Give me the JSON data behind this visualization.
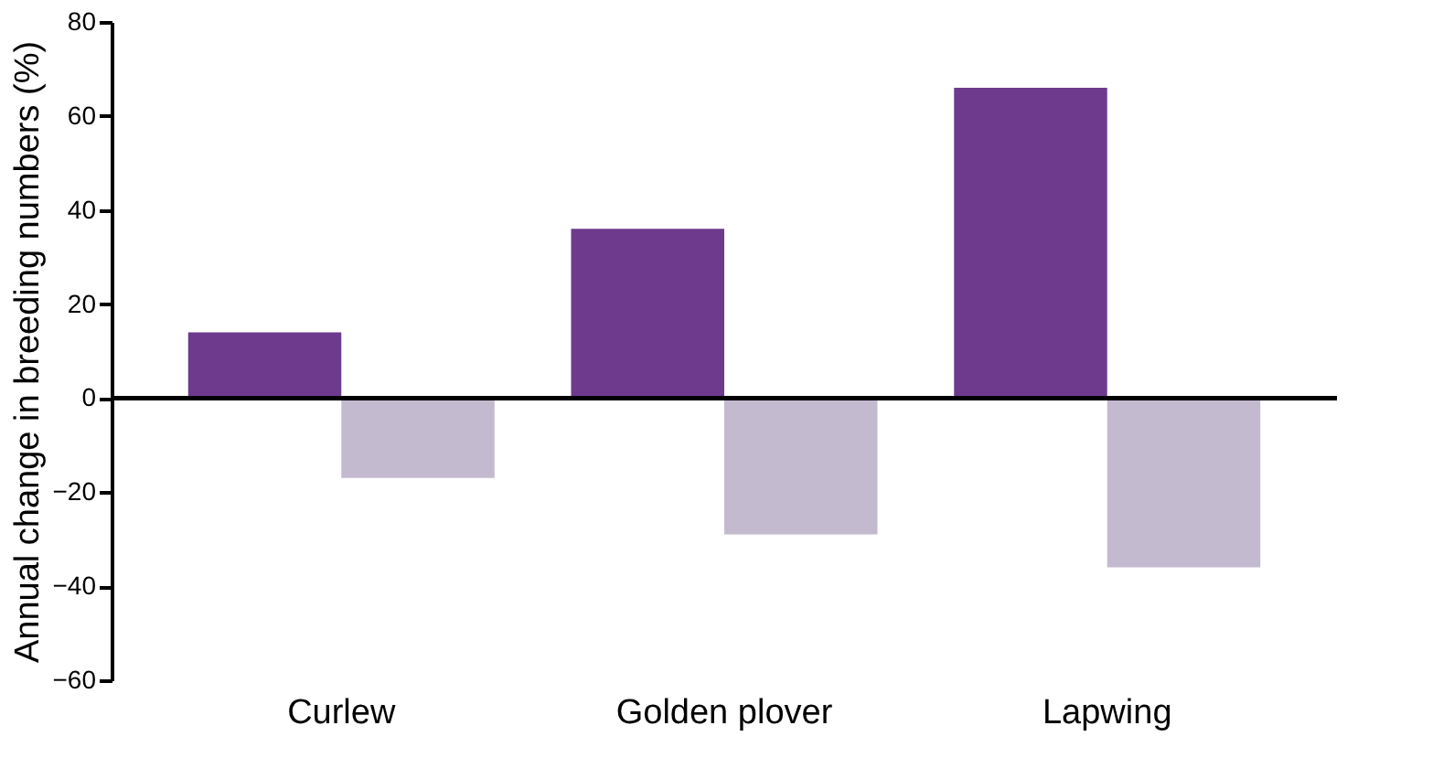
{
  "chart_data": {
    "type": "bar",
    "ylabel": "Annual change in breeding numbers (%)",
    "categories": [
      "Curlew",
      "Golden plover",
      "Lapwing"
    ],
    "series": [
      {
        "color": "#6e3a8e",
        "values": [
          14,
          36,
          66
        ]
      },
      {
        "color": "#c4bad0",
        "values": [
          -17,
          -29,
          -36
        ]
      }
    ],
    "ylim": [
      -60,
      80
    ],
    "yticks": [
      -60,
      -40,
      -20,
      0,
      20,
      40,
      60,
      80
    ]
  }
}
